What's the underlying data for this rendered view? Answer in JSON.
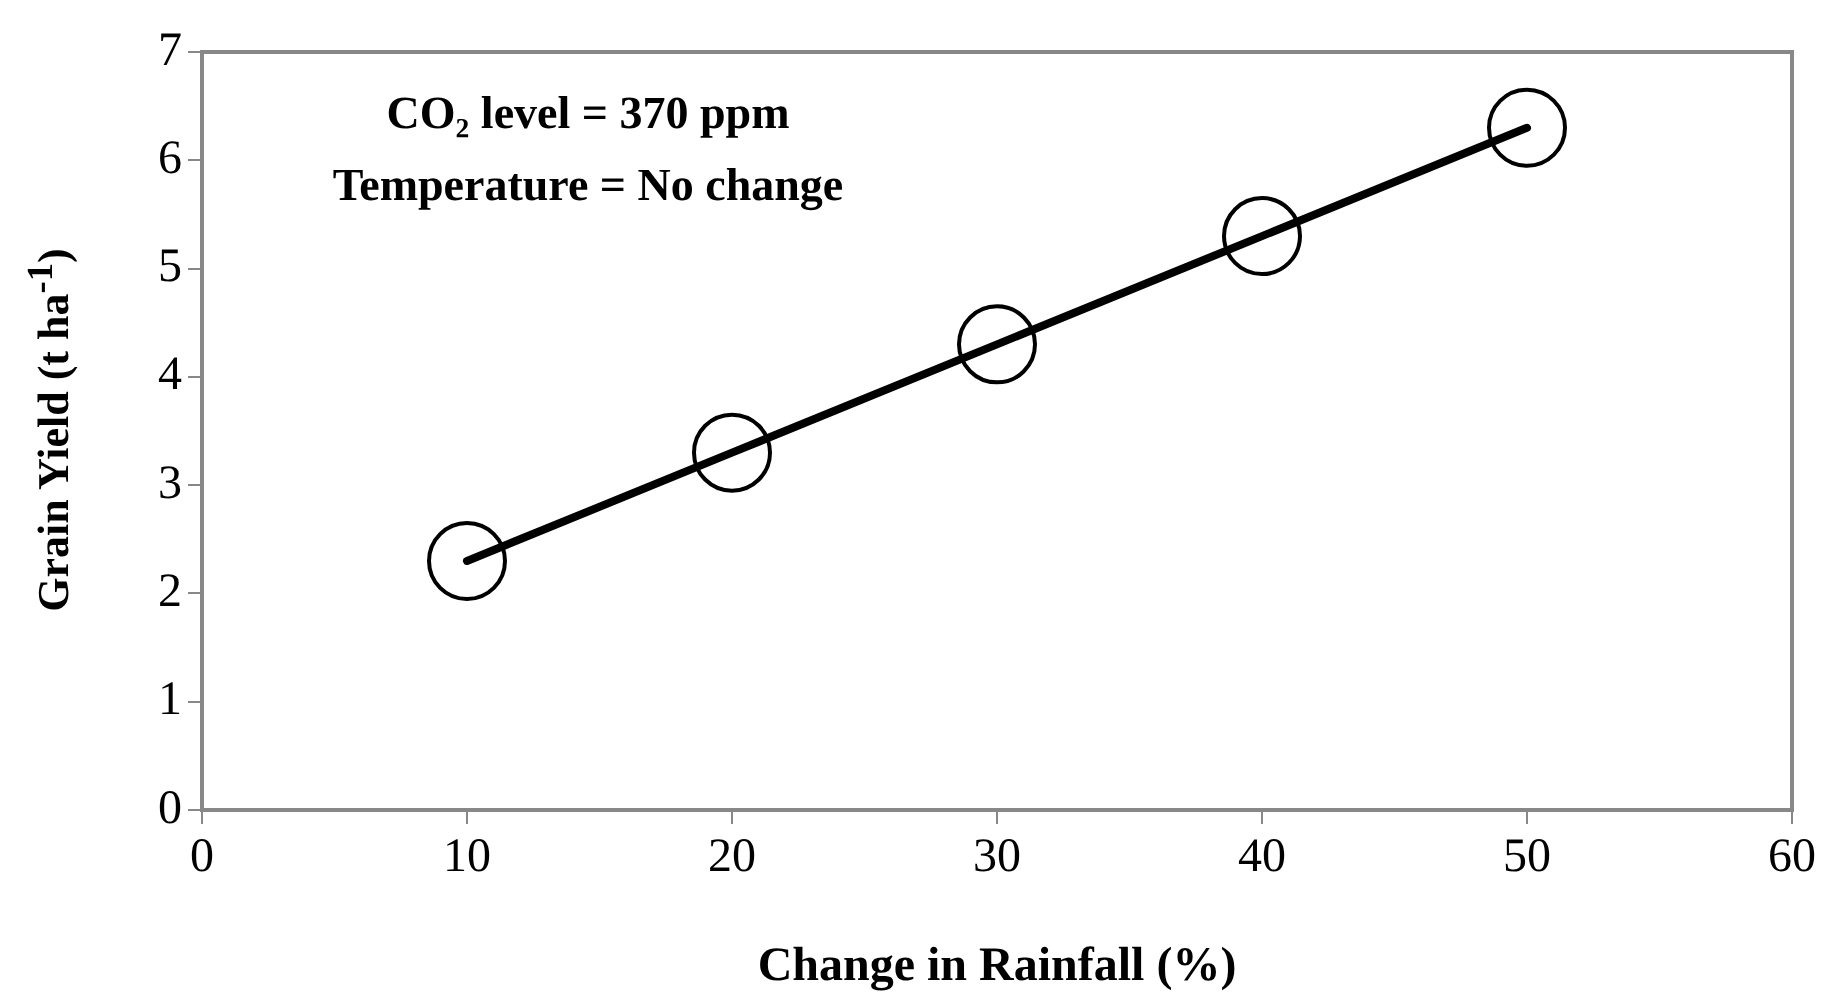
{
  "chart_data": {
    "type": "line",
    "xlabel": "Change in Rainfall (%)",
    "ylabel": "Grain Yield (t ha$^{-1}$)",
    "x": [
      10,
      20,
      30,
      40,
      50
    ],
    "series": [
      {
        "color": "#000000",
        "values": [
          2.3,
          3.3,
          4.3,
          5.3,
          6.3
        ]
      }
    ],
    "xlim": [
      0,
      60
    ],
    "xticks": [
      0,
      10,
      20,
      30,
      40,
      50,
      60
    ],
    "ylim": [
      0,
      7
    ],
    "yticks": [
      0,
      1,
      2,
      3,
      4,
      5,
      6,
      7
    ],
    "marker": "circle",
    "grid": false,
    "legend": false,
    "annotations": [
      "CO₂ level = 370 ppm",
      "Temperature = No change"
    ]
  }
}
